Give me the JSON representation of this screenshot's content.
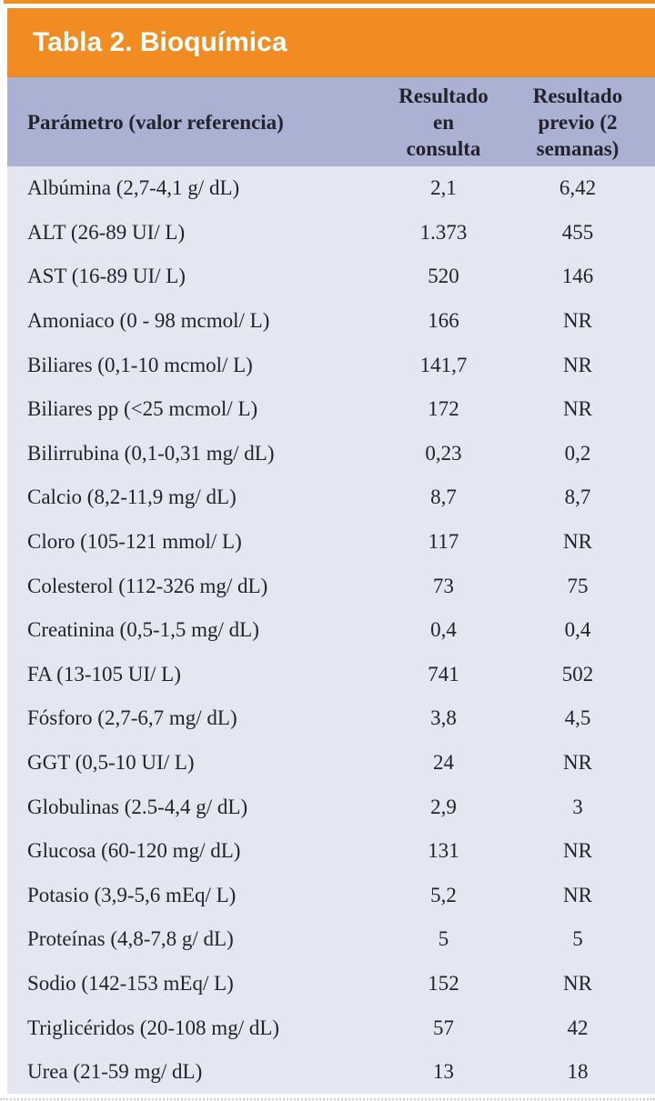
{
  "colors": {
    "accent": "#F08C21",
    "header_bg": "#AAB1D3",
    "body_bg": "#E4E6F1",
    "text": "#232329",
    "title_text": "#FFFFFF"
  },
  "table": {
    "title": "Tabla 2. Bioquímica",
    "columns": [
      {
        "label": "Parámetro (valor referencia)"
      },
      {
        "label": "Resultado\nen\nconsulta"
      },
      {
        "label": "Resultado\nprevio (2\nsemanas)"
      }
    ],
    "rows": [
      {
        "parameter": "Albúmina (2,7-4,1 g/ dL)",
        "consulta": "2,1",
        "previo": "6,42"
      },
      {
        "parameter": "ALT (26-89 UI/ L)",
        "consulta": "1.373",
        "previo": "455"
      },
      {
        "parameter": "AST (16-89 UI/ L)",
        "consulta": "520",
        "previo": "146"
      },
      {
        "parameter": "Amoniaco (0 - 98 mcmol/ L)",
        "consulta": "166",
        "previo": "NR"
      },
      {
        "parameter": "Biliares (0,1-10 mcmol/ L)",
        "consulta": "141,7",
        "previo": "NR"
      },
      {
        "parameter": "Biliares pp (<25 mcmol/ L)",
        "consulta": "172",
        "previo": "NR"
      },
      {
        "parameter": "Bilirrubina (0,1-0,31 mg/ dL)",
        "consulta": "0,23",
        "previo": "0,2"
      },
      {
        "parameter": "Calcio (8,2-11,9 mg/ dL)",
        "consulta": "8,7",
        "previo": "8,7"
      },
      {
        "parameter": "Cloro (105-121 mmol/ L)",
        "consulta": "117",
        "previo": "NR"
      },
      {
        "parameter": "Colesterol (112-326 mg/ dL)",
        "consulta": "73",
        "previo": "75"
      },
      {
        "parameter": "Creatinina (0,5-1,5 mg/ dL)",
        "consulta": "0,4",
        "previo": "0,4"
      },
      {
        "parameter": "FA (13-105 UI/ L)",
        "consulta": "741",
        "previo": "502"
      },
      {
        "parameter": "Fósforo (2,7-6,7 mg/ dL)",
        "consulta": "3,8",
        "previo": "4,5"
      },
      {
        "parameter": "GGT (0,5-10 UI/ L)",
        "consulta": "24",
        "previo": "NR"
      },
      {
        "parameter": "Globulinas (2.5-4,4 g/ dL)",
        "consulta": "2,9",
        "previo": "3"
      },
      {
        "parameter": "Glucosa (60-120 mg/ dL)",
        "consulta": "131",
        "previo": "NR"
      },
      {
        "parameter": "Potasio (3,9-5,6 mEq/ L)",
        "consulta": "5,2",
        "previo": "NR"
      },
      {
        "parameter": "Proteínas (4,8-7,8 g/ dL)",
        "consulta": "5",
        "previo": "5"
      },
      {
        "parameter": "Sodio (142-153 mEq/ L)",
        "consulta": "152",
        "previo": "NR"
      },
      {
        "parameter": "Triglicéridos (20-108 mg/ dL)",
        "consulta": "57",
        "previo": "42"
      },
      {
        "parameter": "Urea (21-59 mg/ dL)",
        "consulta": "13",
        "previo": "18"
      }
    ]
  }
}
